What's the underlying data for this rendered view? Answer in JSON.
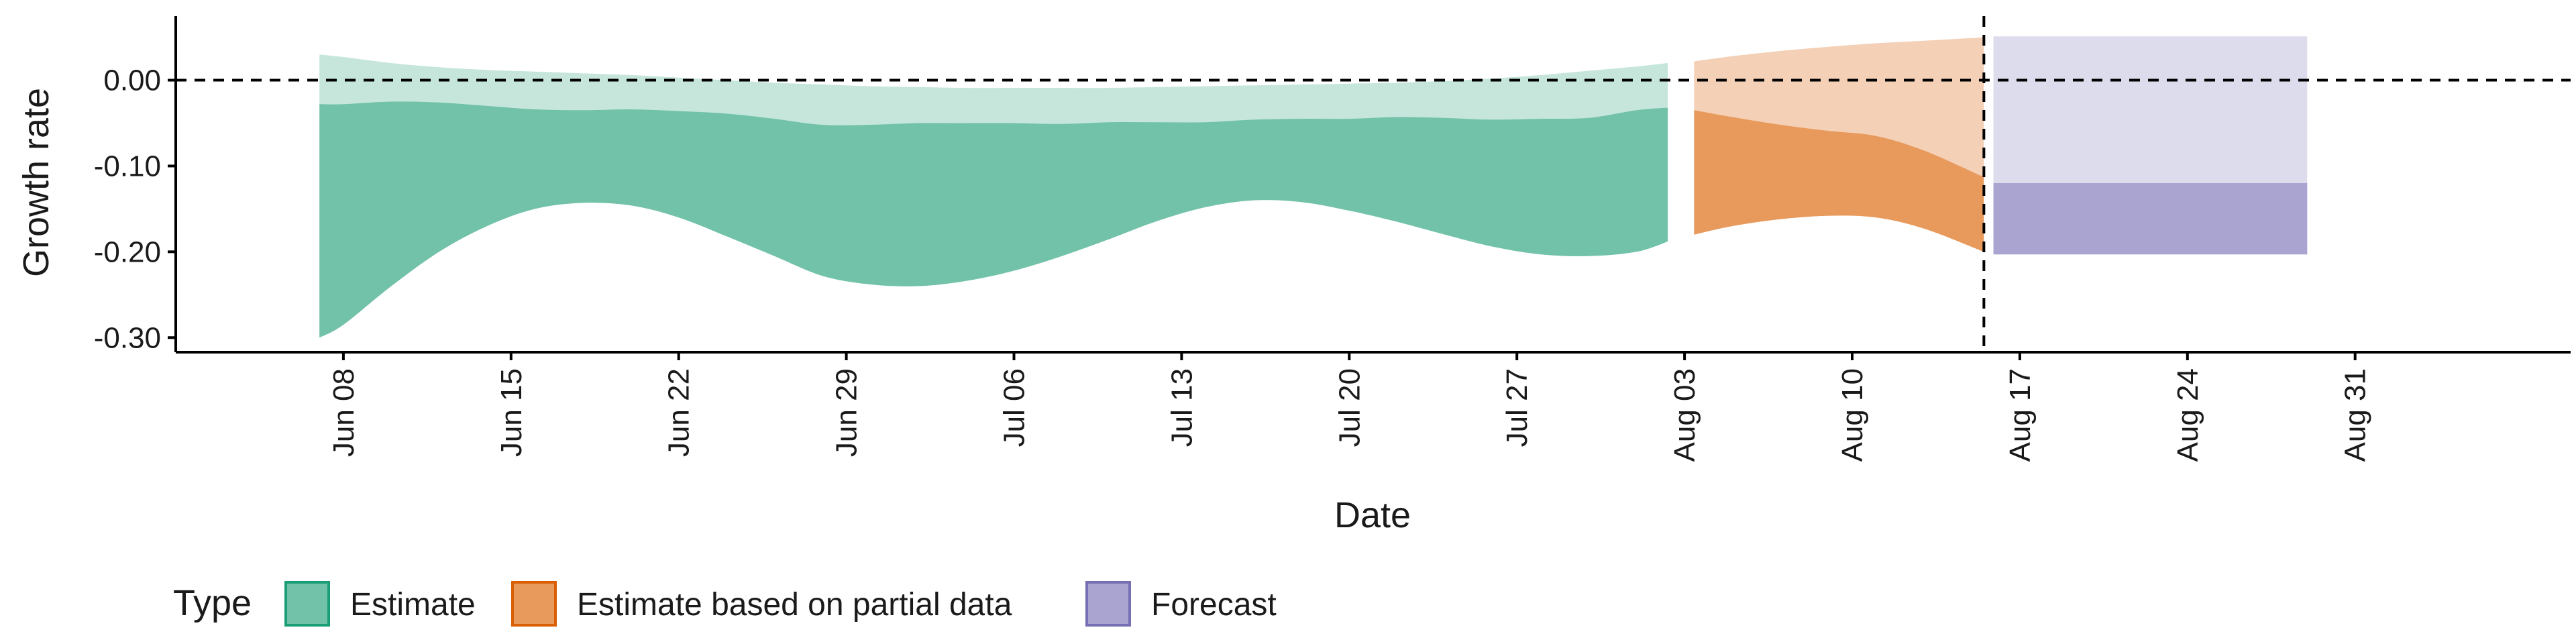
{
  "chart_data": {
    "type": "area",
    "xlabel": "Date",
    "ylabel": "Growth rate",
    "y_ticks": [
      {
        "value": 0.0,
        "label": "0.00"
      },
      {
        "value": -0.1,
        "label": "-0.10"
      },
      {
        "value": -0.2,
        "label": "-0.20"
      },
      {
        "value": -0.3,
        "label": "-0.30"
      }
    ],
    "ylim": [
      -0.317,
      0.07
    ],
    "x_range": [
      0,
      100
    ],
    "x_ticks": [
      {
        "day": 7,
        "label": "Jun 08"
      },
      {
        "day": 14,
        "label": "Jun 15"
      },
      {
        "day": 21,
        "label": "Jun 22"
      },
      {
        "day": 28,
        "label": "Jun 29"
      },
      {
        "day": 35,
        "label": "Jul 06"
      },
      {
        "day": 42,
        "label": "Jul 13"
      },
      {
        "day": 49,
        "label": "Jul 20"
      },
      {
        "day": 56,
        "label": "Jul 27"
      },
      {
        "day": 63,
        "label": "Aug 03"
      },
      {
        "day": 70,
        "label": "Aug 10"
      },
      {
        "day": 77,
        "label": "Aug 17"
      },
      {
        "day": 84,
        "label": "Aug 24"
      },
      {
        "day": 91,
        "label": "Aug 31"
      }
    ],
    "reference_line": {
      "y": 0.0
    },
    "forecast_start_day": 75.5,
    "legend": {
      "title": "Type",
      "position": "bottom",
      "entries": [
        {
          "key": "estimate",
          "label": "Estimate",
          "fill": "#72c2aa",
          "stroke": "#1b9e77"
        },
        {
          "key": "partial",
          "label": "Estimate based on partial data",
          "fill": "#e89a5c",
          "stroke": "#d95f02"
        },
        {
          "key": "forecast",
          "label": "Forecast",
          "fill": "#a9a5d0",
          "stroke": "#7570b3"
        }
      ]
    },
    "series": [
      {
        "name": "Estimate",
        "inner_color": "#72c2aa",
        "outer_color": "#c6e6dc",
        "x": [
          6,
          7,
          9,
          11,
          13,
          15,
          17,
          19,
          21,
          23,
          25,
          27,
          29,
          31,
          33,
          35,
          37,
          39,
          41,
          43,
          45,
          47,
          49,
          51,
          53,
          55,
          57,
          59,
          61,
          62.3
        ],
        "outer_upper": [
          0.03,
          0.027,
          0.02,
          0.015,
          0.012,
          0.01,
          0.008,
          0.006,
          0.003,
          0.0,
          -0.003,
          -0.005,
          -0.007,
          -0.008,
          -0.009,
          -0.009,
          -0.009,
          -0.009,
          -0.008,
          -0.007,
          -0.006,
          -0.005,
          -0.004,
          -0.003,
          -0.001,
          0.002,
          0.006,
          0.011,
          0.016,
          0.02
        ],
        "inner_upper": [
          -0.028,
          -0.028,
          -0.025,
          -0.026,
          -0.03,
          -0.034,
          -0.035,
          -0.034,
          -0.036,
          -0.039,
          -0.045,
          -0.052,
          -0.052,
          -0.05,
          -0.05,
          -0.05,
          -0.051,
          -0.049,
          -0.049,
          -0.049,
          -0.046,
          -0.045,
          -0.045,
          -0.043,
          -0.044,
          -0.046,
          -0.045,
          -0.044,
          -0.035,
          -0.032
        ],
        "inner_lower": [
          -0.3,
          -0.285,
          -0.24,
          -0.2,
          -0.17,
          -0.15,
          -0.143,
          -0.146,
          -0.16,
          -0.182,
          -0.205,
          -0.228,
          -0.238,
          -0.24,
          -0.234,
          -0.222,
          -0.205,
          -0.185,
          -0.164,
          -0.148,
          -0.14,
          -0.142,
          -0.152,
          -0.165,
          -0.18,
          -0.194,
          -0.203,
          -0.205,
          -0.2,
          -0.188
        ]
      },
      {
        "name": "Estimate based on partial data",
        "inner_color": "#e89a5c",
        "outer_color": "#f4d0b6",
        "x": [
          63.4,
          65,
          67,
          69,
          71,
          73,
          75.5
        ],
        "outer_upper": [
          0.022,
          0.028,
          0.034,
          0.039,
          0.043,
          0.046,
          0.05
        ],
        "inner_upper": [
          -0.035,
          -0.043,
          -0.052,
          -0.059,
          -0.065,
          -0.082,
          -0.113
        ],
        "inner_lower": [
          -0.18,
          -0.17,
          -0.162,
          -0.158,
          -0.16,
          -0.173,
          -0.2
        ]
      },
      {
        "name": "Forecast",
        "inner_color": "#a9a5d0",
        "outer_color": "#dddcec",
        "x": [
          75.9,
          89
        ],
        "outer_upper": [
          0.051,
          0.051
        ],
        "inner_upper": [
          -0.12,
          -0.12
        ],
        "inner_lower": [
          -0.203,
          -0.203
        ]
      }
    ]
  }
}
